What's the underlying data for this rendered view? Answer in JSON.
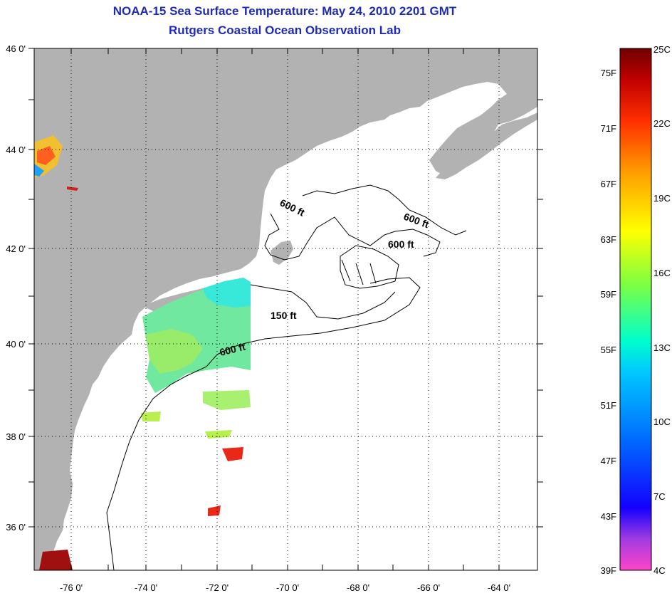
{
  "header": {
    "title": "NOAA-15 Sea Surface Temperature:  May 24, 2010 2201 GMT",
    "subtitle": "Rutgers Coastal Ocean Observation Lab"
  },
  "map": {
    "lat_labels": [
      "46 0'",
      "44 0'",
      "42 0'",
      "40 0'",
      "38 0'",
      "36 0'"
    ],
    "lon_labels": [
      "-76 0'",
      "-74 0'",
      "-72 0'",
      "-70 0'",
      "-68 0'",
      "-66 0'",
      "-64 0'"
    ],
    "contour_labels": [
      "600 ft",
      "600 ft",
      "600 ft",
      "150 ft",
      "600 ft"
    ]
  },
  "colorbar": {
    "fahrenheit_labels": [
      "75F",
      "71F",
      "67F",
      "63F",
      "59F",
      "55F",
      "51F",
      "47F",
      "43F",
      "39F"
    ],
    "celsius_labels": [
      "25C",
      "22C",
      "19C",
      "16C",
      "13C",
      "10C",
      "7C",
      "4C"
    ],
    "gradient_colors": [
      "#ff44c8",
      "#a03ce0",
      "#1400ff",
      "#0064ff",
      "#00c8ff",
      "#00ffcc",
      "#80ff40",
      "#ffff00",
      "#ffa000",
      "#ff3000",
      "#c00000",
      "#700000"
    ]
  },
  "colors": {
    "land": "#b2b2b2",
    "title": "#1f2bb8"
  }
}
